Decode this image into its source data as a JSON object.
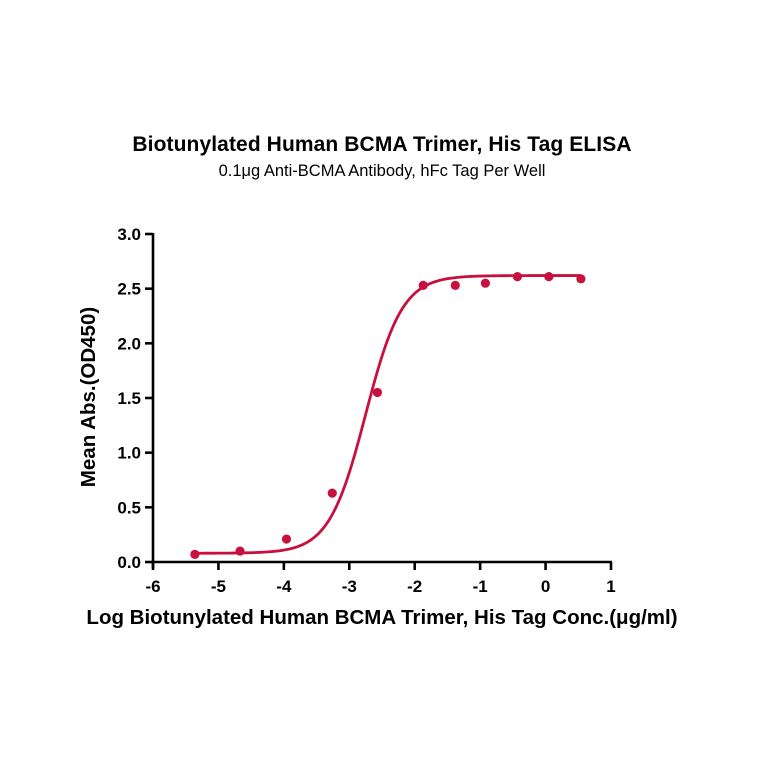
{
  "chart_data": {
    "type": "scatter",
    "title": "Biotunylated Human BCMA Trimer, His Tag ELISA",
    "subtitle": "0.1μg Anti-BCMA Antibody, hFc Tag Per Well",
    "xlabel": "Log Biotunylated Human BCMA Trimer, His Tag Conc.(μg/ml)",
    "ylabel": "Mean Abs.(OD450)",
    "xlim": [
      -6,
      1
    ],
    "ylim": [
      0,
      3.0
    ],
    "x_ticks": [
      "-6",
      "-5",
      "-4",
      "-3",
      "-2",
      "-1",
      "0",
      "1"
    ],
    "y_ticks": [
      "0.0",
      "0.5",
      "1.0",
      "1.5",
      "2.0",
      "2.5",
      "3.0"
    ],
    "grid": false,
    "legend": null,
    "series": [
      {
        "name": "Mean Abs. (OD450)",
        "color": "#c8103e",
        "x": [
          -5.36,
          -4.67,
          -3.96,
          -3.26,
          -2.57,
          -1.87,
          -1.38,
          -0.92,
          -0.43,
          0.05,
          0.54
        ],
        "y": [
          0.07,
          0.1,
          0.21,
          0.63,
          1.55,
          2.53,
          2.53,
          2.55,
          2.61,
          2.61,
          2.59
        ]
      }
    ],
    "fit": {
      "type": "4PL sigmoid",
      "bottom": 0.08,
      "top": 2.62,
      "logEC50": -2.75,
      "hill": 1.55,
      "color": "#c8103e"
    }
  }
}
